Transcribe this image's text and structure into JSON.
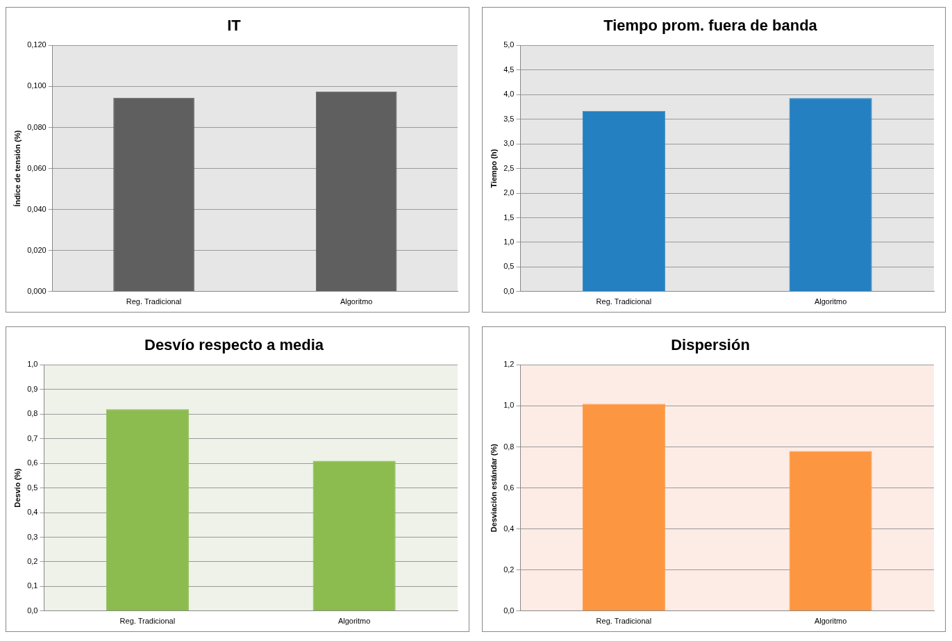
{
  "chart_data": [
    {
      "type": "bar",
      "title": "IT",
      "ylabel": "Índice de tensión (%)",
      "categories": [
        "Reg. Tradicional",
        "Algoritmo"
      ],
      "values": [
        0.0945,
        0.0975
      ],
      "color": "#5f5f5f",
      "ylim": [
        0,
        0.12
      ],
      "yticks": [
        {
          "value": 0,
          "label": "0,000"
        },
        {
          "value": 0.02,
          "label": "0,020"
        },
        {
          "value": 0.04,
          "label": "0,040"
        },
        {
          "value": 0.06,
          "label": "0,060"
        },
        {
          "value": 0.08,
          "label": "0,080"
        },
        {
          "value": 0.1,
          "label": "0,100"
        },
        {
          "value": 0.12,
          "label": "0,120"
        }
      ],
      "grid": "y"
    },
    {
      "type": "bar",
      "title": "Tiempo prom. fuera de banda",
      "ylabel": "Tiempo (h)",
      "categories": [
        "Reg. Tradicional",
        "Algoritmo"
      ],
      "values": [
        3.67,
        3.93
      ],
      "color": "#2480c0",
      "ylim": [
        0,
        5
      ],
      "yticks": [
        {
          "value": 0,
          "label": "0,0"
        },
        {
          "value": 0.5,
          "label": "0,5"
        },
        {
          "value": 1,
          "label": "1,0"
        },
        {
          "value": 1.5,
          "label": "1,5"
        },
        {
          "value": 2,
          "label": "2,0"
        },
        {
          "value": 2.5,
          "label": "2,5"
        },
        {
          "value": 3,
          "label": "3,0"
        },
        {
          "value": 3.5,
          "label": "3,5"
        },
        {
          "value": 4,
          "label": "4,0"
        },
        {
          "value": 4.5,
          "label": "4,5"
        },
        {
          "value": 5,
          "label": "5,0"
        }
      ],
      "grid": "y"
    },
    {
      "type": "bar",
      "title": "Desvío respecto a media",
      "ylabel": "Desvío (%)",
      "categories": [
        "Reg. Tradicional",
        "Algoritmo"
      ],
      "values": [
        0.82,
        0.61
      ],
      "color": "#8cbc50",
      "ylim": [
        0,
        1
      ],
      "yticks": [
        {
          "value": 0,
          "label": "0,0"
        },
        {
          "value": 0.1,
          "label": "0,1"
        },
        {
          "value": 0.2,
          "label": "0,2"
        },
        {
          "value": 0.3,
          "label": "0,3"
        },
        {
          "value": 0.4,
          "label": "0,4"
        },
        {
          "value": 0.5,
          "label": "0,5"
        },
        {
          "value": 0.6,
          "label": "0,6"
        },
        {
          "value": 0.7,
          "label": "0,7"
        },
        {
          "value": 0.8,
          "label": "0,8"
        },
        {
          "value": 0.9,
          "label": "0,9"
        },
        {
          "value": 1,
          "label": "1,0"
        }
      ],
      "grid": "y"
    },
    {
      "type": "bar",
      "title": "Dispersión",
      "ylabel": "Desviación estándar (%)",
      "categories": [
        "Reg. Tradicional",
        "Algoritmo"
      ],
      "values": [
        1.01,
        0.78
      ],
      "color": "#fd9640",
      "ylim": [
        0,
        1.2
      ],
      "yticks": [
        {
          "value": 0,
          "label": "0,0"
        },
        {
          "value": 0.2,
          "label": "0,2"
        },
        {
          "value": 0.4,
          "label": "0,4"
        },
        {
          "value": 0.6,
          "label": "0,6"
        },
        {
          "value": 0.8,
          "label": "0,8"
        },
        {
          "value": 1,
          "label": "1,0"
        },
        {
          "value": 1.2,
          "label": "1,2"
        }
      ],
      "grid": "y"
    }
  ]
}
